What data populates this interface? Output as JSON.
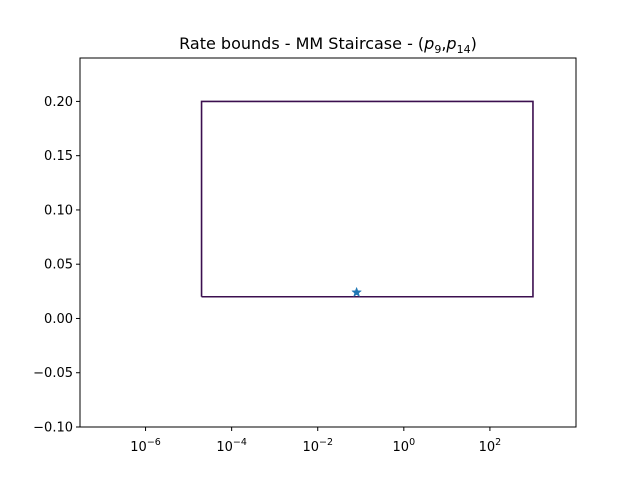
{
  "chart_data": {
    "type": "line",
    "title": {
      "prefix": "Rate bounds - MM Staircase - (",
      "p1": "p",
      "sub1": "9",
      "comma": ",",
      "p2": "p",
      "sub2": "14",
      "suffix": ")"
    },
    "xlabel": "",
    "ylabel": "",
    "xscale": "log",
    "xlim": [
      3e-08,
      10000
    ],
    "ylim": [
      -0.1,
      0.24
    ],
    "x_ticks": [
      {
        "value": 1e-06,
        "base": "10",
        "exp": "−6"
      },
      {
        "value": 0.0001,
        "base": "10",
        "exp": "−4"
      },
      {
        "value": 0.01,
        "base": "10",
        "exp": "−2"
      },
      {
        "value": 1,
        "base": "10",
        "exp": "0"
      },
      {
        "value": 100,
        "base": "10",
        "exp": "2"
      }
    ],
    "y_ticks": [
      {
        "value": 0.2,
        "label": "0.20"
      },
      {
        "value": 0.15,
        "label": "0.15"
      },
      {
        "value": 0.1,
        "label": "0.10"
      },
      {
        "value": 0.05,
        "label": "0.05"
      },
      {
        "value": 0.0,
        "label": "0.00"
      },
      {
        "value": -0.05,
        "label": "−0.05"
      },
      {
        "value": -0.1,
        "label": "−0.10"
      }
    ],
    "grid": false,
    "series": [
      {
        "kind": "line",
        "color": "#3b0f4f",
        "x": [
          2e-05,
          1000,
          1000,
          2e-05,
          2e-05
        ],
        "y": [
          0.02,
          0.02,
          0.2,
          0.2,
          0.02
        ]
      },
      {
        "kind": "marker",
        "marker": "star",
        "color": "#1f77b4",
        "x": [
          0.08
        ],
        "y": [
          0.024
        ]
      }
    ]
  }
}
